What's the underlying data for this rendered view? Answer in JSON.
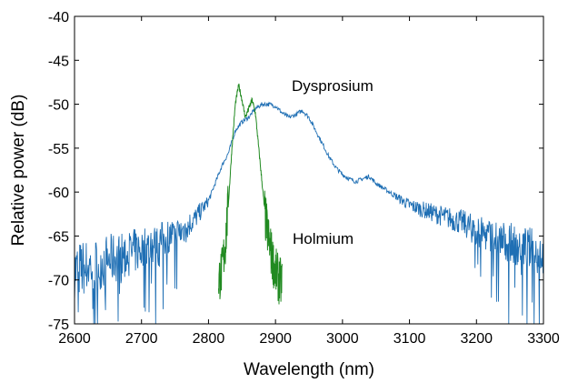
{
  "chart_data": {
    "type": "line",
    "title": "",
    "xlabel": "Wavelength (nm)",
    "ylabel": "Relative power (dB)",
    "xlim": [
      2600,
      3300
    ],
    "ylim": [
      -75,
      -40
    ],
    "xticks": [
      2600,
      2700,
      2800,
      2900,
      3000,
      3100,
      3200,
      3300
    ],
    "yticks": [
      -40,
      -45,
      -50,
      -55,
      -60,
      -65,
      -70,
      -75
    ],
    "grid": false,
    "legend": "none",
    "annotations": [
      {
        "text": "Dysprosium",
        "x": 2960,
        "y": -48
      },
      {
        "text": "Holmium",
        "x": 2960,
        "y": -65.2
      }
    ],
    "series": [
      {
        "color": "#1f6fb4",
        "note_noise": "noisy trace",
        "x": [
          2600,
          2620,
          2640,
          2660,
          2680,
          2700,
          2720,
          2740,
          2760,
          2780,
          2790,
          2800,
          2810,
          2820,
          2830,
          2840,
          2850,
          2860,
          2870,
          2880,
          2890,
          2900,
          2910,
          2920,
          2930,
          2940,
          2950,
          2960,
          2970,
          2980,
          2990,
          3000,
          3010,
          3020,
          3030,
          3040,
          3050,
          3060,
          3080,
          3100,
          3120,
          3140,
          3160,
          3180,
          3200,
          3220,
          3240,
          3260,
          3280,
          3300
        ],
        "y": [
          -69,
          -68.5,
          -68,
          -67.5,
          -67,
          -66.5,
          -66,
          -65,
          -64.5,
          -63,
          -62,
          -61,
          -59,
          -57,
          -55.5,
          -53,
          -52,
          -51.5,
          -50.5,
          -50,
          -50,
          -50.2,
          -51,
          -51.5,
          -51.2,
          -50.7,
          -51.5,
          -53,
          -54.5,
          -56,
          -57.2,
          -58,
          -58.5,
          -58.8,
          -58.5,
          -58.2,
          -59,
          -59.5,
          -60.5,
          -61.5,
          -62,
          -62.5,
          -63,
          -63.5,
          -64.5,
          -65,
          -65.5,
          -66,
          -66.5,
          -67
        ]
      },
      {
        "color": "#218a21",
        "x": [
          2815,
          2820,
          2825,
          2830,
          2835,
          2840,
          2845,
          2850,
          2855,
          2860,
          2865,
          2870,
          2875,
          2880,
          2885,
          2890,
          2895,
          2900,
          2905,
          2910
        ],
        "y": [
          -70,
          -69,
          -66,
          -61,
          -55,
          -50,
          -47.8,
          -49.5,
          -51.5,
          -50.5,
          -49.5,
          -51,
          -55,
          -59,
          -63,
          -65.5,
          -67.5,
          -69,
          -70,
          -70.5
        ]
      }
    ]
  }
}
